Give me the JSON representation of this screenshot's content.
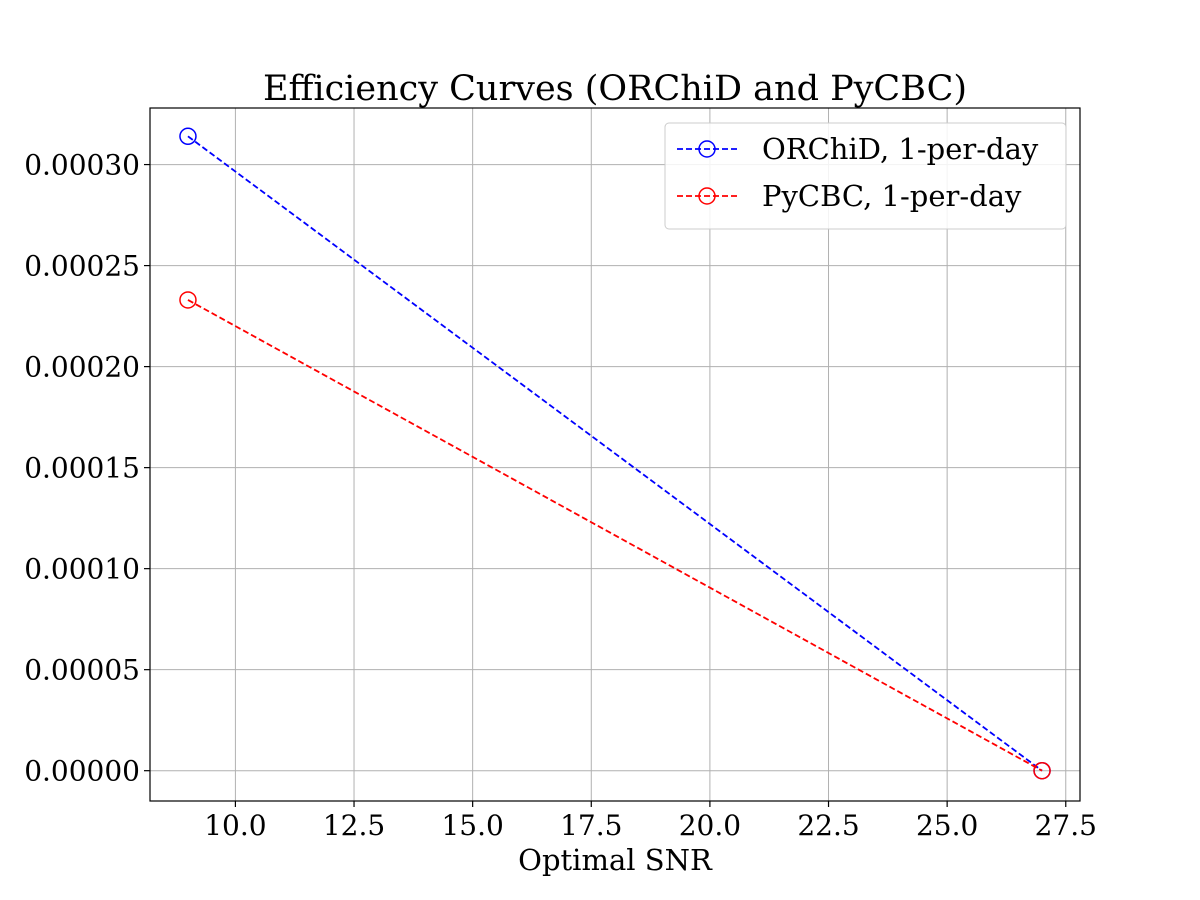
{
  "chart_data": {
    "type": "line",
    "title": "Efficiency Curves (ORChiD and PyCBC)",
    "xlabel": "Optimal SNR",
    "ylabel": "",
    "xlim": [
      8.2,
      27.8
    ],
    "ylim": [
      -1.5e-05,
      0.000328
    ],
    "x_ticks": [
      10.0,
      12.5,
      15.0,
      17.5,
      20.0,
      22.5,
      25.0,
      27.5
    ],
    "x_tick_labels": [
      "10.0",
      "12.5",
      "15.0",
      "17.5",
      "20.0",
      "22.5",
      "25.0",
      "27.5"
    ],
    "y_ticks": [
      0.0,
      5e-05,
      0.0001,
      0.00015,
      0.0002,
      0.00025,
      0.0003
    ],
    "y_tick_labels": [
      "0.00000",
      "0.00005",
      "0.00010",
      "0.00015",
      "0.00020",
      "0.00025",
      "0.00030"
    ],
    "grid": true,
    "legend_position": "top-right",
    "series": [
      {
        "name": "ORChiD, 1-per-day",
        "color": "#0000ff",
        "line_style": "dashed",
        "marker": "open-circle",
        "x": [
          9.0,
          27.0
        ],
        "y": [
          0.000314,
          0.0
        ]
      },
      {
        "name": "PyCBC, 1-per-day",
        "color": "#ff0000",
        "line_style": "dashed",
        "marker": "open-circle",
        "x": [
          9.0,
          27.0
        ],
        "y": [
          0.000233,
          0.0
        ]
      }
    ]
  }
}
